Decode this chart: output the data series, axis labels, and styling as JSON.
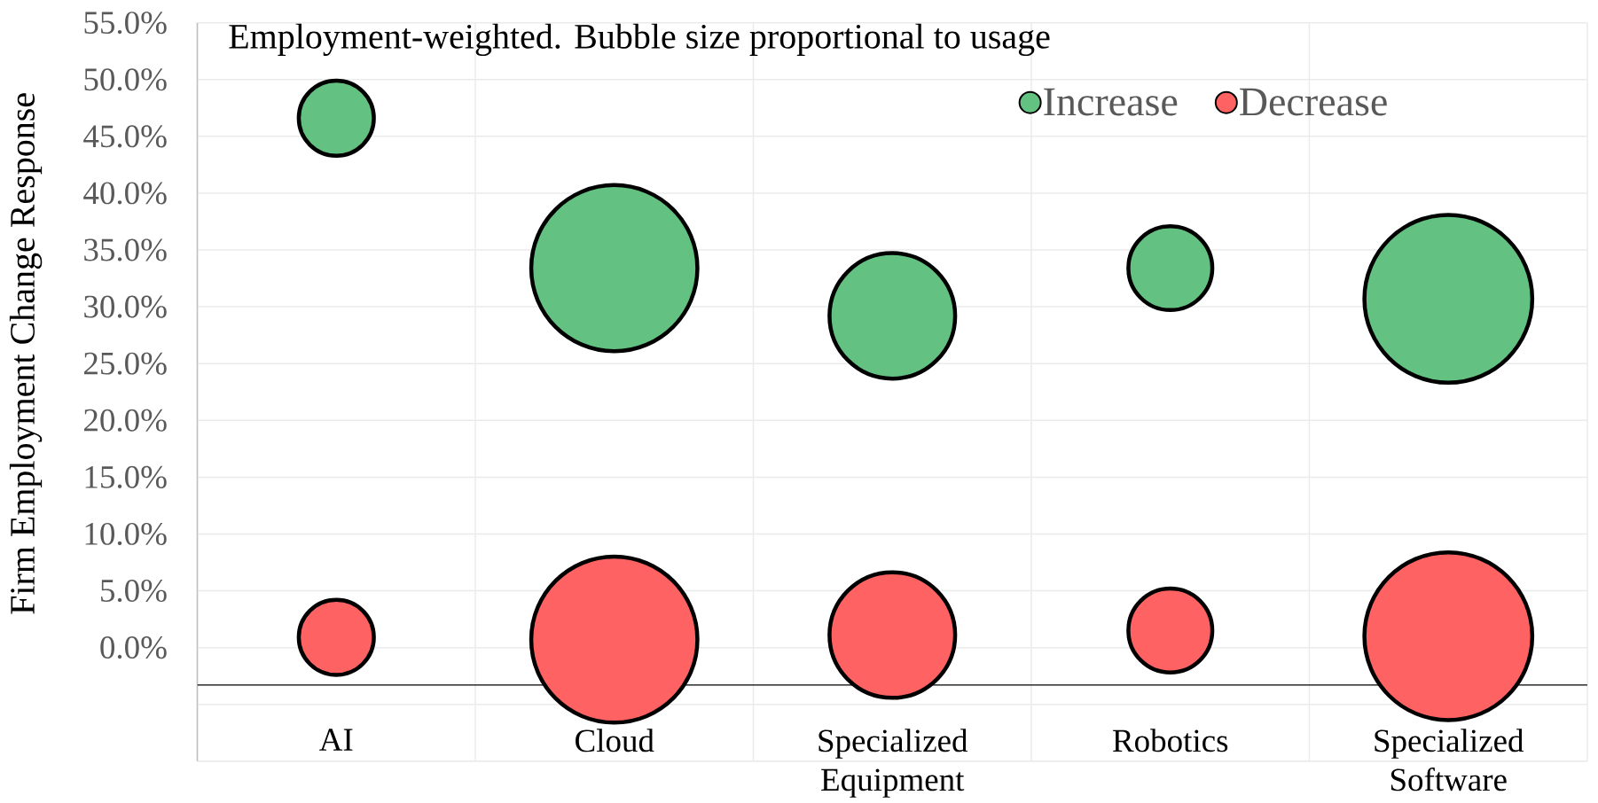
{
  "chart_data": {
    "type": "bubble",
    "annotations": [
      "Employment-weighted. Bubble size proportional to usage"
    ],
    "ylabel": "Firm Employment Change Response",
    "categories": [
      "AI",
      "Cloud",
      "Specialized Equipment",
      "Robotics",
      "Specialized Software"
    ],
    "series": [
      {
        "name": "Increase",
        "color": "#63c282",
        "values": [
          46.6,
          33.4,
          29.2,
          33.4,
          30.7
        ],
        "sizes": [
          0.2,
          0.98,
          0.56,
          0.25,
          1
        ]
      },
      {
        "name": "Decrease",
        "color": "#ff6262",
        "values": [
          0.9,
          0.7,
          1.1,
          1.5,
          1.0
        ],
        "sizes": [
          0.2,
          0.98,
          0.56,
          0.25,
          1
        ]
      }
    ],
    "ylim": [
      -10,
      55
    ],
    "yticks": [
      {
        "value": -10,
        "label": null
      },
      {
        "value": -5,
        "label": null
      },
      {
        "value": 0,
        "label": "0.0%"
      },
      {
        "value": 5,
        "label": "5.0%"
      },
      {
        "value": 10,
        "label": "10.0%"
      },
      {
        "value": 15,
        "label": "15.0%"
      },
      {
        "value": 20,
        "label": "20.0%"
      },
      {
        "value": 25,
        "label": "25.0%"
      },
      {
        "value": 30,
        "label": "30.0%"
      },
      {
        "value": 35,
        "label": "35.0%"
      },
      {
        "value": 40,
        "label": "40.0%"
      },
      {
        "value": 45,
        "label": "45.0%"
      },
      {
        "value": 50,
        "label": "50.0%"
      },
      {
        "value": 55,
        "label": "55.0%"
      }
    ],
    "ref_lines": [
      {
        "axis": "y",
        "value": -3.3,
        "color": "#000000"
      }
    ],
    "grid": true,
    "legend": "top right",
    "marker": "circle"
  }
}
